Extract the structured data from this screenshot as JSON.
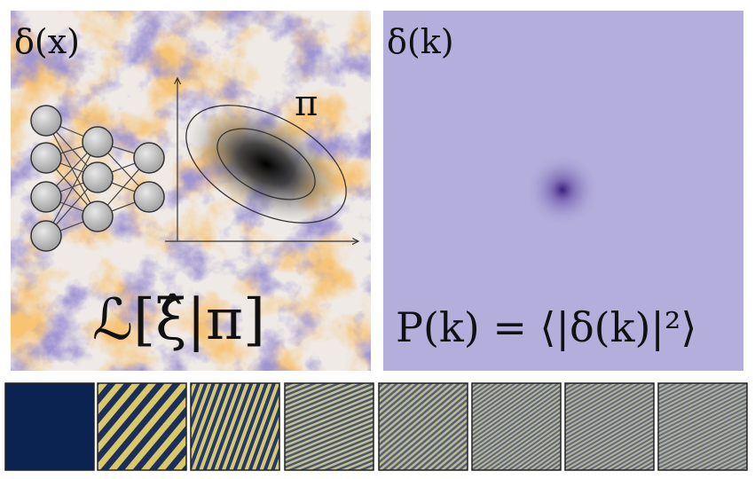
{
  "left_panel": {
    "label": "δ(x)",
    "prior_label": "π",
    "loss_label": "ℒ[ξ̂|π]"
  },
  "right_panel": {
    "label": "δ(k)",
    "formula": "P(k) = ⟨|δ(k)|²⟩"
  }
}
